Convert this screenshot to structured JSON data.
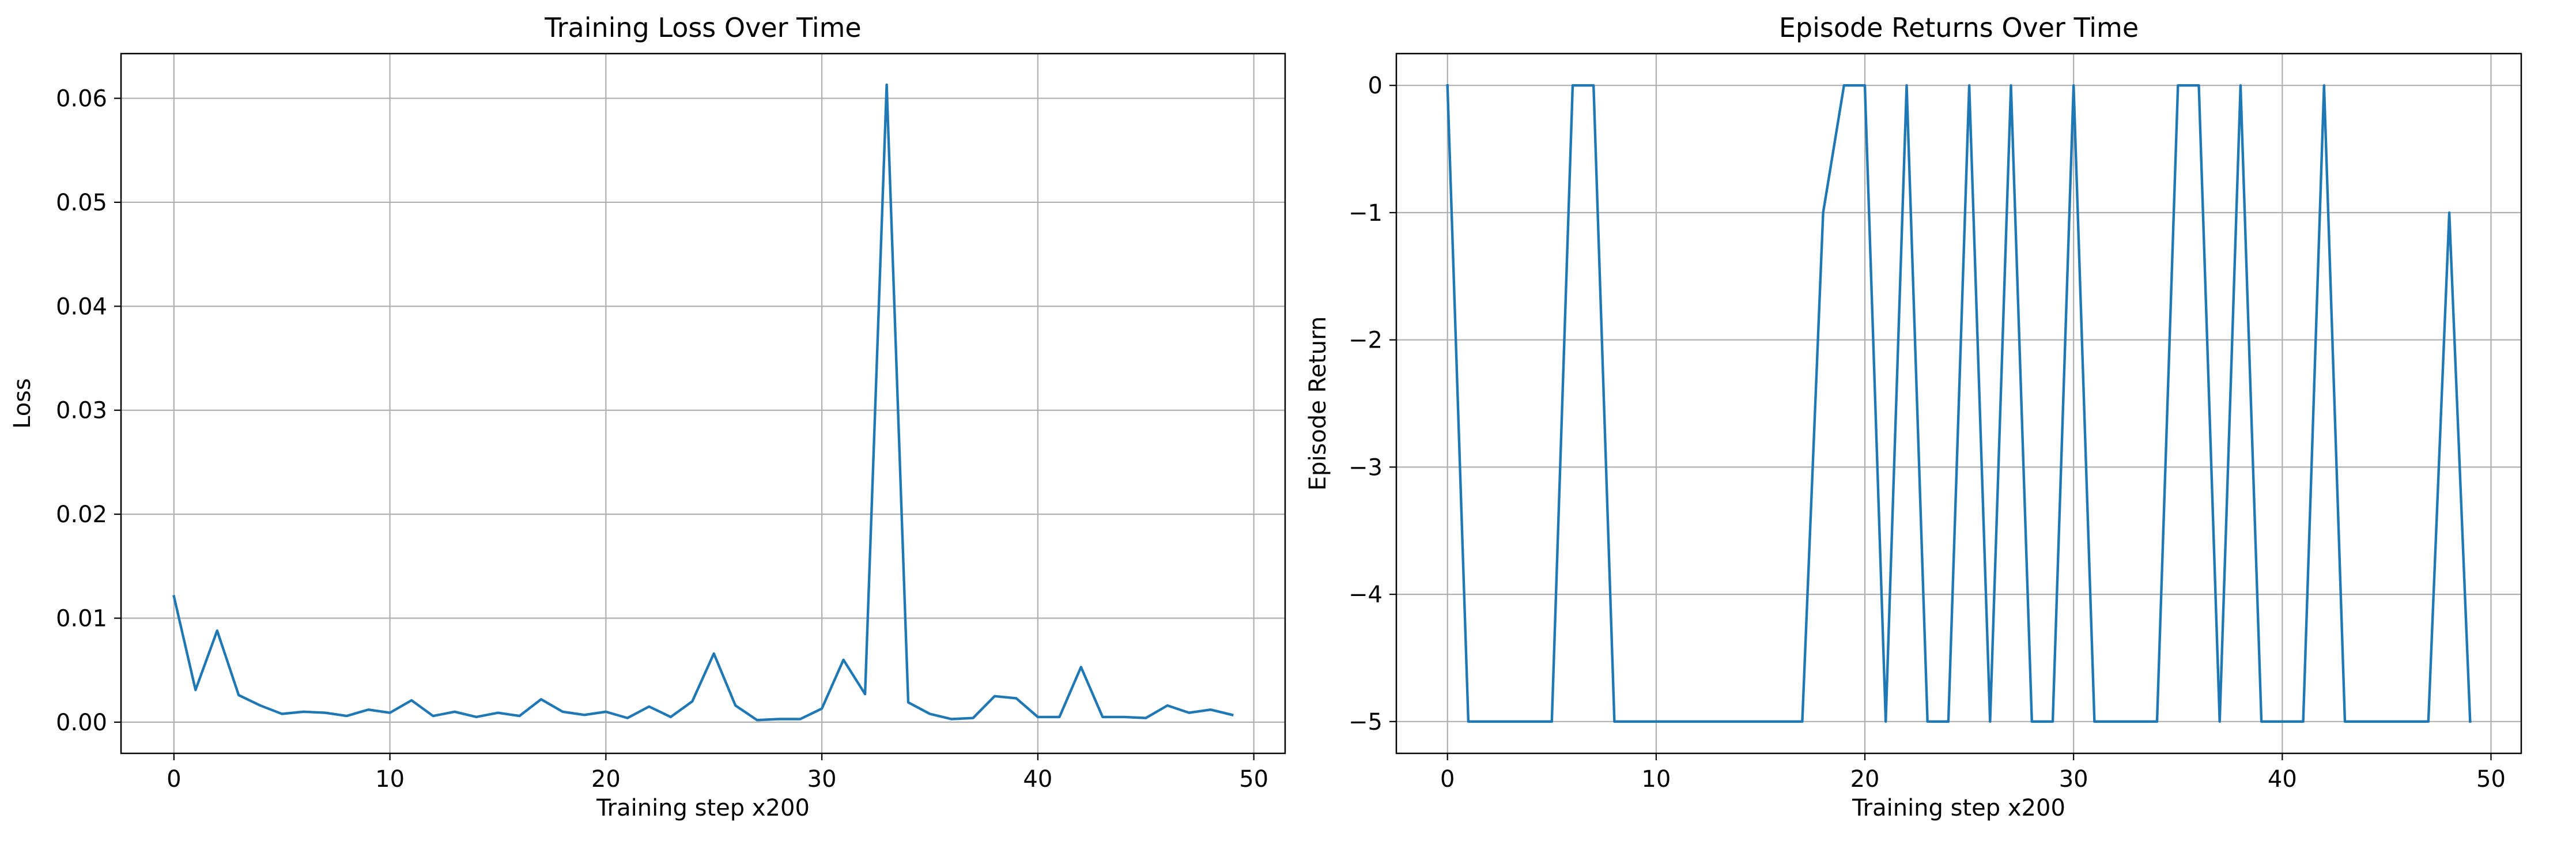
{
  "colors": {
    "series": "#1f77b4",
    "grid": "#b0b0b0",
    "axis": "#000000"
  },
  "chart_data": [
    {
      "type": "line",
      "title": "Training Loss Over Time",
      "xlabel": "Training step x200",
      "ylabel": "Loss",
      "xlim": [
        -2.45,
        51.45
      ],
      "ylim": [
        -0.003,
        0.0643
      ],
      "xticks": [
        0,
        10,
        20,
        30,
        40,
        50
      ],
      "yticks": [
        0.0,
        0.01,
        0.02,
        0.03,
        0.04,
        0.05,
        0.06
      ],
      "ytick_labels": [
        "0.00",
        "0.01",
        "0.02",
        "0.03",
        "0.04",
        "0.05",
        "0.06"
      ],
      "grid": true,
      "x": [
        0,
        1,
        2,
        3,
        4,
        5,
        6,
        7,
        8,
        9,
        10,
        11,
        12,
        13,
        14,
        15,
        16,
        17,
        18,
        19,
        20,
        21,
        22,
        23,
        24,
        25,
        26,
        27,
        28,
        29,
        30,
        31,
        32,
        33,
        34,
        35,
        36,
        37,
        38,
        39,
        40,
        41,
        42,
        43,
        44,
        45,
        46,
        47,
        48,
        49
      ],
      "series": [
        {
          "values": [
            0.0121,
            0.0031,
            0.0088,
            0.0026,
            0.0016,
            0.0008,
            0.001,
            0.0009,
            0.0006,
            0.0012,
            0.0009,
            0.0021,
            0.0006,
            0.001,
            0.0005,
            0.0009,
            0.0006,
            0.0022,
            0.001,
            0.0007,
            0.001,
            0.0004,
            0.0015,
            0.0005,
            0.002,
            0.0066,
            0.0016,
            0.0002,
            0.0003,
            0.0003,
            0.0013,
            0.006,
            0.0027,
            0.0613,
            0.0019,
            0.0008,
            0.0003,
            0.0004,
            0.0025,
            0.0023,
            0.0005,
            0.0005,
            0.0053,
            0.0005,
            0.0005,
            0.0004,
            0.0016,
            0.0009,
            0.0012,
            0.0007
          ]
        }
      ]
    },
    {
      "type": "line",
      "title": "Episode Returns Over Time",
      "xlabel": "Training step x200",
      "ylabel": "Episode Return",
      "xlim": [
        -2.45,
        51.45
      ],
      "ylim": [
        -5.25,
        0.25
      ],
      "xticks": [
        0,
        10,
        20,
        30,
        40,
        50
      ],
      "yticks": [
        0,
        -1,
        -2,
        -3,
        -4,
        -5
      ],
      "ytick_labels": [
        "0",
        "−1",
        "−2",
        "−3",
        "−4",
        "−5"
      ],
      "grid": true,
      "x": [
        0,
        1,
        2,
        3,
        4,
        5,
        6,
        7,
        8,
        9,
        10,
        11,
        12,
        13,
        14,
        15,
        16,
        17,
        18,
        19,
        20,
        21,
        22,
        23,
        24,
        25,
        26,
        27,
        28,
        29,
        30,
        31,
        32,
        33,
        34,
        35,
        36,
        37,
        38,
        39,
        40,
        41,
        42,
        43,
        44,
        45,
        46,
        47,
        48,
        49
      ],
      "series": [
        {
          "values": [
            0,
            -5,
            -5,
            -5,
            -5,
            -5,
            0,
            0,
            -5,
            -5,
            -5,
            -5,
            -5,
            -5,
            -5,
            -5,
            -5,
            -5,
            -1,
            0,
            0,
            -5,
            0,
            -5,
            -5,
            0,
            -5,
            0,
            -5,
            -5,
            0,
            -5,
            -5,
            -5,
            -5,
            0,
            0,
            -5,
            0,
            -5,
            -5,
            -5,
            0,
            -5,
            -5,
            -5,
            -5,
            -5,
            -1,
            -5
          ]
        }
      ]
    }
  ]
}
